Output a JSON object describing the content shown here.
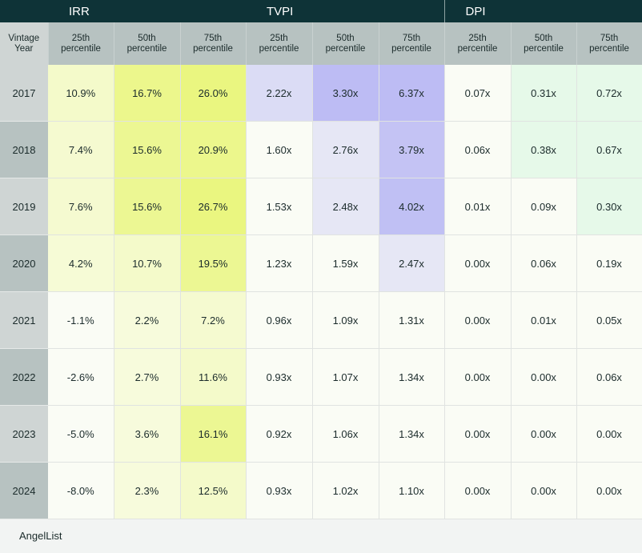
{
  "groups": {
    "irr": "IRR",
    "tvpi": "TVPI",
    "dpi": "DPI"
  },
  "subheaders": {
    "vintage": "Vintage\nYear",
    "p25": "25th\npercentile",
    "p50": "50th\npercentile",
    "p75": "75th\npercentile"
  },
  "footer": {
    "brand": "AngelList"
  },
  "colors": {
    "header_bg": "#0e3337",
    "subheader_bg": "#b7c2c1",
    "irr_scale": [
      "#fafcf5",
      "#e9f67a"
    ],
    "tvpi_scale": [
      "#fafcf5",
      "#b6b5f4"
    ],
    "dpi_scale": [
      "#fafcf5",
      "#d9f7e1"
    ],
    "year_col_light": "#cfd5d4",
    "year_col_dark": "#b7c2c1"
  },
  "chart_data": {
    "type": "table",
    "columns": [
      "Vintage Year",
      "IRR 25th percentile",
      "IRR 50th percentile",
      "IRR 75th percentile",
      "TVPI 25th percentile",
      "TVPI 50th percentile",
      "TVPI 75th percentile",
      "DPI 25th percentile",
      "DPI 50th percentile",
      "DPI 75th percentile"
    ],
    "rows": [
      {
        "year": "2017",
        "irr": [
          "10.9%",
          "16.7%",
          "26.0%"
        ],
        "tvpi": [
          "2.22x",
          "3.30x",
          "6.37x"
        ],
        "dpi": [
          "0.07x",
          "0.31x",
          "0.72x"
        ],
        "year_shade": "light",
        "irr_level": [
          0.35,
          0.85,
          0.95
        ],
        "tvpi_level": [
          0.45,
          0.9,
          0.9
        ],
        "dpi_level": [
          0.0,
          0.6,
          0.6
        ]
      },
      {
        "year": "2018",
        "irr": [
          "7.4%",
          "15.6%",
          "20.9%"
        ],
        "tvpi": [
          "1.60x",
          "2.76x",
          "3.79x"
        ],
        "dpi": [
          "0.06x",
          "0.38x",
          "0.67x"
        ],
        "year_shade": "dark",
        "irr_level": [
          0.3,
          0.8,
          0.85
        ],
        "tvpi_level": [
          0.0,
          0.3,
          0.8
        ],
        "dpi_level": [
          0.0,
          0.6,
          0.6
        ]
      },
      {
        "year": "2019",
        "irr": [
          "7.6%",
          "15.6%",
          "26.7%"
        ],
        "tvpi": [
          "1.53x",
          "2.48x",
          "4.02x"
        ],
        "dpi": [
          "0.01x",
          "0.09x",
          "0.30x"
        ],
        "year_shade": "light",
        "irr_level": [
          0.3,
          0.8,
          0.95
        ],
        "tvpi_level": [
          0.0,
          0.3,
          0.85
        ],
        "dpi_level": [
          0.0,
          0.0,
          0.6
        ]
      },
      {
        "year": "2020",
        "irr": [
          "4.2%",
          "10.7%",
          "19.5%"
        ],
        "tvpi": [
          "1.23x",
          "1.59x",
          "2.47x"
        ],
        "dpi": [
          "0.00x",
          "0.06x",
          "0.19x"
        ],
        "year_shade": "dark",
        "irr_level": [
          0.25,
          0.35,
          0.8
        ],
        "tvpi_level": [
          0.0,
          0.0,
          0.3
        ],
        "dpi_level": [
          0.0,
          0.0,
          0.0
        ]
      },
      {
        "year": "2021",
        "irr": [
          "-1.1%",
          "2.2%",
          "7.2%"
        ],
        "tvpi": [
          "0.96x",
          "1.09x",
          "1.31x"
        ],
        "dpi": [
          "0.00x",
          "0.01x",
          "0.05x"
        ],
        "year_shade": "light",
        "irr_level": [
          0.0,
          0.2,
          0.3
        ],
        "tvpi_level": [
          0.0,
          0.0,
          0.0
        ],
        "dpi_level": [
          0.0,
          0.0,
          0.0
        ]
      },
      {
        "year": "2022",
        "irr": [
          "-2.6%",
          "2.7%",
          "11.6%"
        ],
        "tvpi": [
          "0.93x",
          "1.07x",
          "1.34x"
        ],
        "dpi": [
          "0.00x",
          "0.00x",
          "0.06x"
        ],
        "year_shade": "dark",
        "irr_level": [
          0.0,
          0.2,
          0.35
        ],
        "tvpi_level": [
          0.0,
          0.0,
          0.0
        ],
        "dpi_level": [
          0.0,
          0.0,
          0.0
        ]
      },
      {
        "year": "2023",
        "irr": [
          "-5.0%",
          "3.6%",
          "16.1%"
        ],
        "tvpi": [
          "0.92x",
          "1.06x",
          "1.34x"
        ],
        "dpi": [
          "0.00x",
          "0.00x",
          "0.00x"
        ],
        "year_shade": "light",
        "irr_level": [
          0.0,
          0.2,
          0.8
        ],
        "tvpi_level": [
          0.0,
          0.0,
          0.0
        ],
        "dpi_level": [
          0.0,
          0.0,
          0.0
        ]
      },
      {
        "year": "2024",
        "irr": [
          "-8.0%",
          "2.3%",
          "12.5%"
        ],
        "tvpi": [
          "0.93x",
          "1.02x",
          "1.10x"
        ],
        "dpi": [
          "0.00x",
          "0.00x",
          "0.00x"
        ],
        "year_shade": "dark",
        "irr_level": [
          0.0,
          0.2,
          0.35
        ],
        "tvpi_level": [
          0.0,
          0.0,
          0.0
        ],
        "dpi_level": [
          0.0,
          0.0,
          0.0
        ]
      }
    ]
  }
}
